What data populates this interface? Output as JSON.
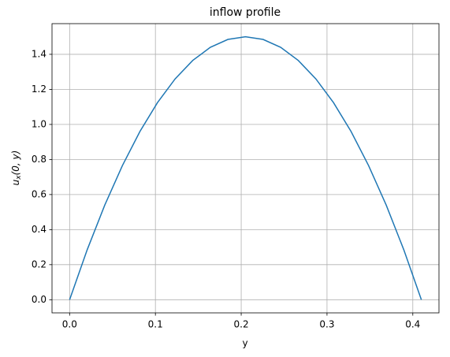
{
  "chart_data": {
    "type": "line",
    "title": "inflow profile",
    "xlabel": "y",
    "ylabel_parts": [
      "u",
      "x",
      "(0, y)"
    ],
    "x": [
      0,
      0.0205,
      0.041,
      0.0615,
      0.082,
      0.1025,
      0.123,
      0.1435,
      0.164,
      0.1845,
      0.205,
      0.2255,
      0.246,
      0.2665,
      0.287,
      0.3075,
      0.328,
      0.3485,
      0.369,
      0.3895,
      0.41
    ],
    "values": [
      0,
      0.285,
      0.54,
      0.765,
      0.96,
      1.125,
      1.26,
      1.365,
      1.44,
      1.485,
      1.5,
      1.485,
      1.44,
      1.365,
      1.26,
      1.125,
      0.96,
      0.765,
      0.54,
      0.285,
      0
    ],
    "color": "#1f77b4",
    "xlim": [
      -0.0205,
      0.4305
    ],
    "ylim": [
      -0.075,
      1.575
    ],
    "xticks": [
      {
        "value": 0,
        "label": "0.0"
      },
      {
        "value": 0.1,
        "label": "0.1"
      },
      {
        "value": 0.2,
        "label": "0.2"
      },
      {
        "value": 0.3,
        "label": "0.3"
      },
      {
        "value": 0.4,
        "label": "0.4"
      }
    ],
    "yticks": [
      {
        "value": 0,
        "label": "0.0"
      },
      {
        "value": 0.2,
        "label": "0.2"
      },
      {
        "value": 0.4,
        "label": "0.4"
      },
      {
        "value": 0.6,
        "label": "0.6"
      },
      {
        "value": 0.8,
        "label": "0.8"
      },
      {
        "value": 1,
        "label": "1.0"
      },
      {
        "value": 1.2,
        "label": "1.2"
      },
      {
        "value": 1.4,
        "label": "1.4"
      }
    ],
    "grid": true
  }
}
